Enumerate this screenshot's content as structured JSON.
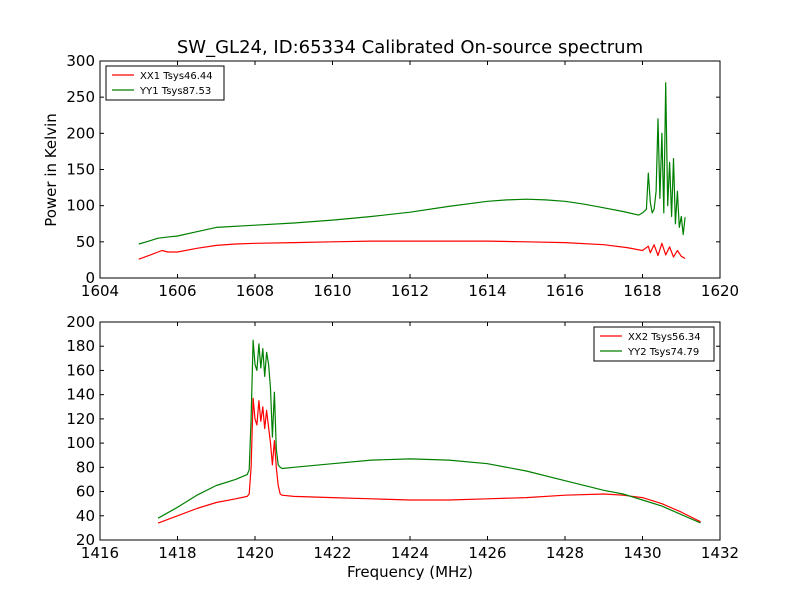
{
  "chart_data": [
    {
      "type": "line",
      "title": "SW_GL24, ID:65334 Calibrated On-source spectrum",
      "xlabel": "",
      "ylabel": "Power in Kelvin",
      "xlim": [
        1604,
        1620
      ],
      "ylim": [
        0,
        300
      ],
      "xticks": [
        1604,
        1606,
        1608,
        1610,
        1612,
        1614,
        1616,
        1618,
        1620
      ],
      "yticks": [
        0,
        50,
        100,
        150,
        200,
        250,
        300
      ],
      "xtick_labels": [
        "1604",
        "1606",
        "1608",
        "1610",
        "1612",
        "1614",
        "1616",
        "1618",
        "1620"
      ],
      "ytick_labels": [
        "0",
        "50",
        "100",
        "150",
        "200",
        "250",
        "300"
      ],
      "legend_position": "top-left",
      "grid": false,
      "series": [
        {
          "name": "XX1 Tsys46.44",
          "color": "#ff0000",
          "x": [
            1605.0,
            1605.3,
            1605.6,
            1605.75,
            1606.0,
            1606.5,
            1607.0,
            1607.5,
            1608.0,
            1609.0,
            1610.0,
            1611.0,
            1612.0,
            1613.0,
            1614.0,
            1615.0,
            1616.0,
            1617.0,
            1617.6,
            1618.0,
            1618.15,
            1618.2,
            1618.3,
            1618.4,
            1618.5,
            1618.6,
            1618.7,
            1618.8,
            1618.9,
            1619.0,
            1619.1
          ],
          "y": [
            26,
            32,
            38,
            36,
            36,
            41,
            45,
            47,
            48,
            49,
            50,
            51,
            51,
            51,
            51,
            50,
            49,
            46,
            42,
            38,
            44,
            35,
            46,
            31,
            48,
            32,
            43,
            29,
            38,
            30,
            27
          ]
        },
        {
          "name": "YY1 Tsys87.53",
          "color": "#008000",
          "x": [
            1605.0,
            1605.2,
            1605.5,
            1605.8,
            1606.0,
            1606.5,
            1607.0,
            1608.0,
            1609.0,
            1610.0,
            1611.0,
            1612.0,
            1613.0,
            1614.0,
            1614.5,
            1615.0,
            1615.5,
            1616.0,
            1616.5,
            1617.0,
            1617.5,
            1617.9,
            1618.0,
            1618.1,
            1618.15,
            1618.2,
            1618.25,
            1618.3,
            1618.35,
            1618.4,
            1618.45,
            1618.5,
            1618.55,
            1618.6,
            1618.65,
            1618.7,
            1618.75,
            1618.8,
            1618.85,
            1618.9,
            1618.95,
            1619.0,
            1619.05,
            1619.1
          ],
          "y": [
            47,
            50,
            55,
            57,
            58,
            64,
            70,
            73,
            76,
            80,
            85,
            91,
            99,
            106,
            108,
            109,
            108,
            106,
            102,
            97,
            92,
            87,
            90,
            95,
            145,
            105,
            90,
            95,
            120,
            220,
            110,
            200,
            90,
            270,
            100,
            160,
            85,
            165,
            75,
            120,
            70,
            85,
            60,
            84
          ]
        }
      ]
    },
    {
      "type": "line",
      "title": "",
      "xlabel": "Frequency (MHz)",
      "ylabel": "",
      "xlim": [
        1416,
        1432
      ],
      "ylim": [
        20,
        200
      ],
      "xticks": [
        1416,
        1418,
        1420,
        1422,
        1424,
        1426,
        1428,
        1430,
        1432
      ],
      "yticks": [
        20,
        40,
        60,
        80,
        100,
        120,
        140,
        160,
        180,
        200
      ],
      "xtick_labels": [
        "1416",
        "1418",
        "1420",
        "1422",
        "1424",
        "1426",
        "1428",
        "1430",
        "1432"
      ],
      "ytick_labels": [
        "20",
        "40",
        "60",
        "80",
        "100",
        "120",
        "140",
        "160",
        "180",
        "200"
      ],
      "legend_position": "top-right",
      "grid": false,
      "series": [
        {
          "name": "XX2 Tsys56.34",
          "color": "#ff0000",
          "x": [
            1417.5,
            1418.0,
            1418.5,
            1419.0,
            1419.5,
            1419.8,
            1419.85,
            1419.9,
            1419.95,
            1420.0,
            1420.05,
            1420.1,
            1420.15,
            1420.2,
            1420.25,
            1420.3,
            1420.35,
            1420.4,
            1420.45,
            1420.5,
            1420.55,
            1420.6,
            1420.65,
            1420.7,
            1421.0,
            1422.0,
            1423.0,
            1424.0,
            1425.0,
            1426.0,
            1427.0,
            1428.0,
            1429.0,
            1429.5,
            1430.0,
            1430.5,
            1431.0,
            1431.5
          ],
          "y": [
            34,
            40,
            46,
            51,
            54,
            56,
            58,
            80,
            137,
            120,
            115,
            135,
            118,
            130,
            112,
            127,
            113,
            100,
            82,
            102,
            80,
            65,
            58,
            57,
            56,
            55,
            54,
            53,
            53,
            54,
            55,
            57,
            58,
            57,
            55,
            50,
            43,
            35
          ]
        },
        {
          "name": "YY2 Tsys74.79",
          "color": "#008000",
          "x": [
            1417.5,
            1418.0,
            1418.5,
            1419.0,
            1419.5,
            1419.8,
            1419.85,
            1419.9,
            1419.95,
            1420.0,
            1420.05,
            1420.1,
            1420.15,
            1420.2,
            1420.25,
            1420.3,
            1420.35,
            1420.4,
            1420.45,
            1420.5,
            1420.55,
            1420.6,
            1420.65,
            1420.7,
            1421.0,
            1422.0,
            1423.0,
            1424.0,
            1425.0,
            1426.0,
            1427.0,
            1428.0,
            1429.0,
            1429.5,
            1430.0,
            1430.5,
            1431.0,
            1431.5
          ],
          "y": [
            38,
            47,
            57,
            65,
            70,
            74,
            78,
            120,
            185,
            165,
            160,
            182,
            162,
            178,
            155,
            175,
            165,
            145,
            105,
            142,
            95,
            82,
            80,
            79,
            80,
            83,
            86,
            87,
            86,
            83,
            77,
            69,
            61,
            58,
            53,
            48,
            41,
            34
          ]
        }
      ]
    }
  ]
}
